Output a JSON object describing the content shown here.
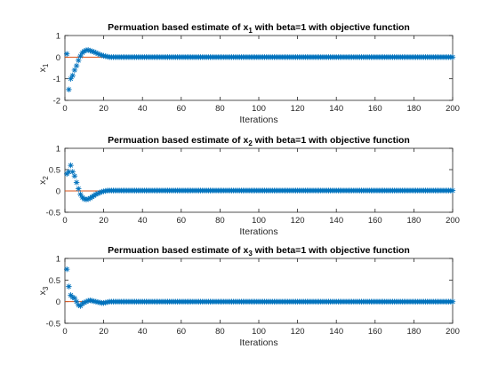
{
  "chart_data": [
    {
      "type": "scatter",
      "title_main": "Permuation based estimate of x",
      "title_sub": "1",
      "title_rest": " with beta=1 with objective function",
      "xlabel": "Iterations",
      "ylabel_main": "x",
      "ylabel_sub": "1",
      "xlim": [
        0,
        200
      ],
      "ylim": [
        -2,
        1
      ],
      "xticks": [
        "0",
        "20",
        "40",
        "60",
        "80",
        "100",
        "120",
        "140",
        "160",
        "180",
        "200"
      ],
      "yticks": [
        "-2",
        "-1",
        "0",
        "1"
      ],
      "reference_y": 0,
      "grid": false,
      "marker": "asterisk",
      "series_color": "#0072BD",
      "reference_color": "#D95319",
      "series": [
        {
          "values": [
            0.15,
            -1.5,
            -1.0,
            -0.85,
            -0.6,
            -0.4,
            -0.15,
            0.05,
            0.2,
            0.28,
            0.32,
            0.33,
            0.3,
            0.27,
            0.24,
            0.2,
            0.16,
            0.12,
            0.09,
            0.06,
            0.04,
            0.02
          ],
          "tail_value": 0.0
        }
      ]
    },
    {
      "type": "scatter",
      "title_main": "Permuation based estimate of x",
      "title_sub": "2",
      "title_rest": " with beta=1 with objective function",
      "xlabel": "Iterations",
      "ylabel_main": "x",
      "ylabel_sub": "2",
      "xlim": [
        0,
        200
      ],
      "ylim": [
        -0.5,
        1
      ],
      "xticks": [
        "0",
        "20",
        "40",
        "60",
        "80",
        "100",
        "120",
        "140",
        "160",
        "180",
        "200"
      ],
      "yticks": [
        "-0.5",
        "0",
        "0.5",
        "1"
      ],
      "reference_y": 0,
      "grid": false,
      "marker": "asterisk",
      "series_color": "#0072BD",
      "reference_color": "#D95319",
      "series": [
        {
          "values": [
            0.4,
            0.45,
            0.6,
            0.45,
            0.35,
            0.2,
            0.05,
            -0.08,
            -0.15,
            -0.19,
            -0.2,
            -0.19,
            -0.17,
            -0.14,
            -0.11,
            -0.08,
            -0.06,
            -0.04,
            -0.02,
            -0.01,
            0.0,
            0.01
          ],
          "tail_value": 0.01
        }
      ]
    },
    {
      "type": "scatter",
      "title_main": "Permuation based estimate of x",
      "title_sub": "3",
      "title_rest": " with beta=1 with objective function",
      "xlabel": "Iterations",
      "ylabel_main": "x",
      "ylabel_sub": "3",
      "xlim": [
        0,
        200
      ],
      "ylim": [
        -0.5,
        1
      ],
      "xticks": [
        "0",
        "20",
        "40",
        "60",
        "80",
        "100",
        "120",
        "140",
        "160",
        "180",
        "200"
      ],
      "yticks": [
        "-0.5",
        "0",
        "0.5",
        "1"
      ],
      "reference_y": 0,
      "grid": false,
      "marker": "asterisk",
      "series_color": "#0072BD",
      "reference_color": "#D95319",
      "series": [
        {
          "values": [
            0.75,
            0.35,
            0.15,
            0.1,
            0.08,
            0.0,
            -0.08,
            -0.1,
            -0.05,
            -0.02,
            0.0,
            0.02,
            0.03,
            0.02,
            0.01,
            0.0,
            -0.01,
            -0.02,
            -0.03,
            -0.03,
            -0.02,
            -0.01
          ],
          "tail_value": 0.0
        }
      ]
    }
  ]
}
